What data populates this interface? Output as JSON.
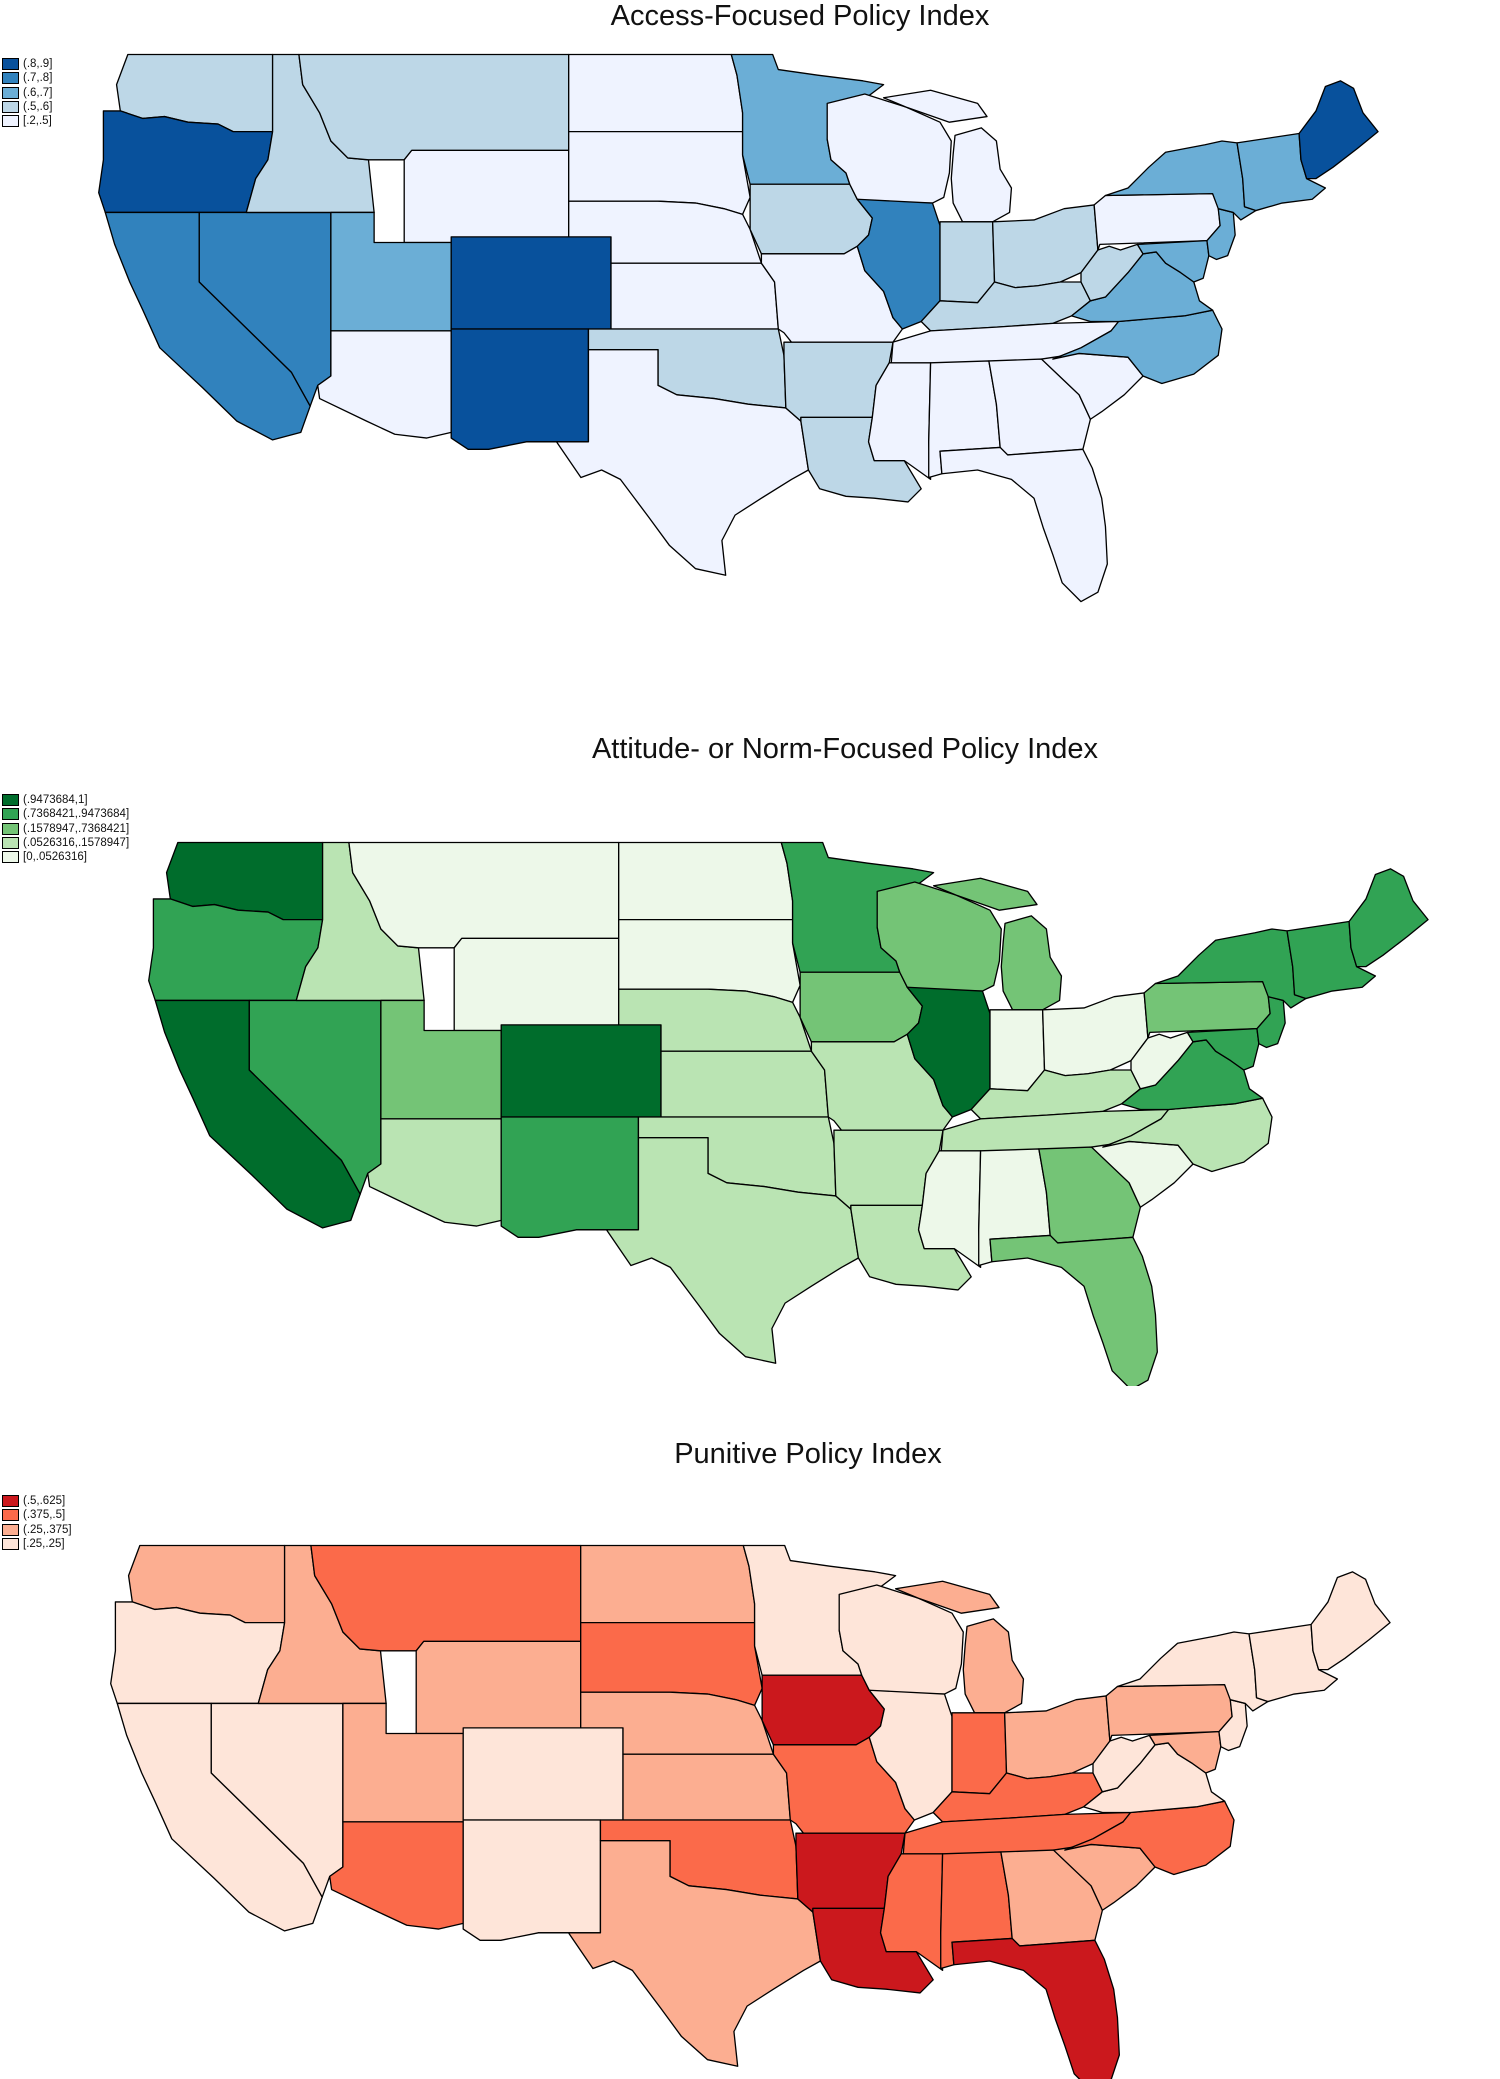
{
  "panels": [
    {
      "id": "access",
      "title": "Access-Focused Policy Index",
      "legend": [
        {
          "label": "(.8,.9]",
          "color": "#08519c"
        },
        {
          "label": "(.7,.8]",
          "color": "#3182bd"
        },
        {
          "label": "(.6,.7]",
          "color": "#6baed6"
        },
        {
          "label": "(.5,.6]",
          "color": "#bdd7e7"
        },
        {
          "label": "[.2,.5]",
          "color": "#eff3ff"
        }
      ],
      "states": {
        "WA": "#bdd7e7",
        "OR": "#08519c",
        "CA": "#3182bd",
        "NV": "#3182bd",
        "ID": "#bdd7e7",
        "MT": "#bdd7e7",
        "WY": "#eff3ff",
        "UT": "#6baed6",
        "CO": "#08519c",
        "AZ": "#eff3ff",
        "NM": "#08519c",
        "ND": "#eff3ff",
        "SD": "#eff3ff",
        "NE": "#eff3ff",
        "KS": "#eff3ff",
        "OK": "#bdd7e7",
        "TX": "#eff3ff",
        "MN": "#6baed6",
        "IA": "#bdd7e7",
        "MO": "#eff3ff",
        "AR": "#bdd7e7",
        "LA": "#bdd7e7",
        "WI": "#eff3ff",
        "IL": "#3182bd",
        "MI": "#eff3ff",
        "IN": "#bdd7e7",
        "OH": "#bdd7e7",
        "KY": "#bdd7e7",
        "TN": "#eff3ff",
        "MS": "#eff3ff",
        "AL": "#eff3ff",
        "GA": "#eff3ff",
        "FL": "#eff3ff",
        "SC": "#eff3ff",
        "NC": "#6baed6",
        "VA": "#6baed6",
        "WV": "#bdd7e7",
        "PA": "#eff3ff",
        "NY": "#6baed6",
        "ME": "#08519c",
        "NE_ENG": "#6baed6",
        "NJ": "#6baed6",
        "MD": "#6baed6"
      }
    },
    {
      "id": "attitude",
      "title": "Attitude- or Norm-Focused Policy Index",
      "legend": [
        {
          "label": "(.9473684,1]",
          "color": "#006d2c"
        },
        {
          "label": "(.7368421,.9473684]",
          "color": "#31a354"
        },
        {
          "label": "(.1578947,.7368421]",
          "color": "#74c476"
        },
        {
          "label": "(.0526316,.1578947]",
          "color": "#bae4b3"
        },
        {
          "label": "[0,.0526316]",
          "color": "#edf8e9"
        }
      ],
      "states": {
        "WA": "#006d2c",
        "OR": "#31a354",
        "CA": "#006d2c",
        "NV": "#31a354",
        "ID": "#bae4b3",
        "MT": "#edf8e9",
        "WY": "#edf8e9",
        "UT": "#74c476",
        "CO": "#006d2c",
        "AZ": "#bae4b3",
        "NM": "#31a354",
        "ND": "#edf8e9",
        "SD": "#edf8e9",
        "NE": "#bae4b3",
        "KS": "#bae4b3",
        "OK": "#bae4b3",
        "TX": "#bae4b3",
        "MN": "#31a354",
        "IA": "#74c476",
        "MO": "#bae4b3",
        "AR": "#bae4b3",
        "LA": "#bae4b3",
        "WI": "#74c476",
        "IL": "#006d2c",
        "MI": "#74c476",
        "IN": "#edf8e9",
        "OH": "#edf8e9",
        "KY": "#bae4b3",
        "TN": "#bae4b3",
        "MS": "#edf8e9",
        "AL": "#edf8e9",
        "GA": "#74c476",
        "FL": "#74c476",
        "SC": "#edf8e9",
        "NC": "#bae4b3",
        "VA": "#31a354",
        "WV": "#edf8e9",
        "PA": "#74c476",
        "NY": "#31a354",
        "ME": "#31a354",
        "NE_ENG": "#31a354",
        "NJ": "#31a354",
        "MD": "#31a354"
      }
    },
    {
      "id": "punitive",
      "title": "Punitive Policy Index",
      "legend": [
        {
          "label": "(.5,.625]",
          "color": "#cb181d"
        },
        {
          "label": "(.375,.5]",
          "color": "#fb6a4a"
        },
        {
          "label": "(.25,.375]",
          "color": "#fcae91"
        },
        {
          "label": "[.25,.25]",
          "color": "#fee5d9"
        }
      ],
      "states": {
        "WA": "#fcae91",
        "OR": "#fee5d9",
        "CA": "#fee5d9",
        "NV": "#fee5d9",
        "ID": "#fcae91",
        "MT": "#fb6a4a",
        "WY": "#fcae91",
        "UT": "#fcae91",
        "CO": "#fee5d9",
        "AZ": "#fb6a4a",
        "NM": "#fee5d9",
        "ND": "#fcae91",
        "SD": "#fb6a4a",
        "NE": "#fcae91",
        "KS": "#fcae91",
        "OK": "#fb6a4a",
        "TX": "#fcae91",
        "MN": "#fee5d9",
        "IA": "#cb181d",
        "MO": "#fb6a4a",
        "AR": "#cb181d",
        "LA": "#cb181d",
        "WI": "#fee5d9",
        "IL": "#fee5d9",
        "MI": "#fcae91",
        "IN": "#fb6a4a",
        "OH": "#fcae91",
        "KY": "#fb6a4a",
        "TN": "#fb6a4a",
        "MS": "#fb6a4a",
        "AL": "#fb6a4a",
        "GA": "#fcae91",
        "FL": "#cb181d",
        "SC": "#fcae91",
        "NC": "#fb6a4a",
        "VA": "#fee5d9",
        "WV": "#fee5d9",
        "PA": "#fcae91",
        "NY": "#fee5d9",
        "ME": "#fee5d9",
        "NE_ENG": "#fee5d9",
        "NJ": "#fee5d9",
        "MD": "#fcae91"
      }
    }
  ]
}
